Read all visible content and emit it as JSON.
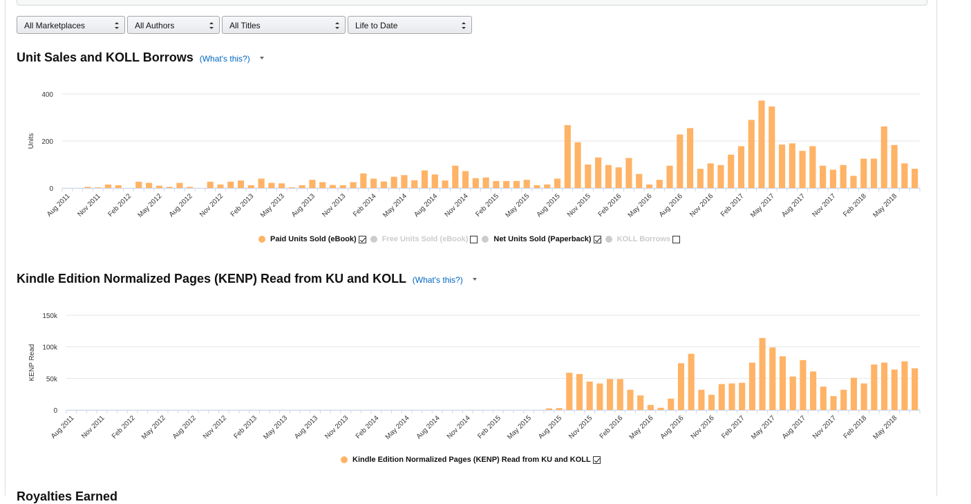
{
  "filters": {
    "marketplace": "All Marketplaces",
    "author": "All Authors",
    "title": "All Titles",
    "period": "Life to Date"
  },
  "section1": {
    "title": "Unit Sales and KOLL Borrows",
    "whats_this": "(What's this?)"
  },
  "section2": {
    "title": "Kindle Edition Normalized Pages (KENP) Read from KU and KOLL",
    "whats_this": "(What's this?)"
  },
  "section3": {
    "title": "Royalties Earned"
  },
  "legend1": [
    {
      "label": "Paid Units Sold (eBook)",
      "color": "#ffb366",
      "active": true,
      "checked": true
    },
    {
      "label": "Free Units Sold (eBook)",
      "color": "#cccccc",
      "active": false,
      "checked": false
    },
    {
      "label": "Net Units Sold (Paperback)",
      "color": "#cccccc",
      "active": true,
      "checked": true
    },
    {
      "label": "KOLL Borrows",
      "color": "#cccccc",
      "active": false,
      "checked": false
    }
  ],
  "legend2": [
    {
      "label": "Kindle Edition Normalized Pages (KENP) Read from KU and KOLL",
      "color": "#ffb366",
      "active": true,
      "checked": true
    }
  ],
  "chart_data": [
    {
      "type": "bar",
      "ylabel": "Units",
      "ylim": [
        0,
        400
      ],
      "yticks": [
        0,
        200,
        400
      ],
      "ytick_labels": [
        "0",
        "200",
        "400"
      ],
      "bar_color": "#ffb366",
      "xtick_labels": [
        "Aug 2011",
        "Nov 2011",
        "Feb 2012",
        "May 2012",
        "Aug 2012",
        "Nov 2012",
        "Feb 2013",
        "May 2013",
        "Aug 2013",
        "Nov 2013",
        "Feb 2014",
        "May 2014",
        "Aug 2014",
        "Nov 2014",
        "Feb 2015",
        "May 2015",
        "Aug 2015",
        "Nov 2015",
        "Feb 2016",
        "May 2016",
        "Aug 2016",
        "Nov 2016",
        "Feb 2017",
        "May 2017",
        "Aug 2017",
        "Nov 2017",
        "Feb 2018",
        "May 2018"
      ],
      "xtick_every": 3,
      "values": [
        0,
        0,
        5,
        3,
        15,
        12,
        0,
        27,
        22,
        10,
        5,
        22,
        5,
        0,
        27,
        15,
        27,
        32,
        12,
        40,
        22,
        20,
        3,
        12,
        35,
        25,
        13,
        12,
        25,
        62,
        40,
        28,
        48,
        55,
        33,
        75,
        58,
        32,
        95,
        72,
        42,
        45,
        30,
        30,
        30,
        35,
        12,
        15,
        40,
        268,
        195,
        100,
        130,
        98,
        88,
        128,
        60,
        15,
        35,
        95,
        228,
        255,
        82,
        105,
        98,
        142,
        178,
        290,
        372,
        347,
        185,
        190,
        158,
        178,
        95,
        78,
        98,
        52,
        125,
        125,
        262,
        183,
        105,
        82
      ]
    },
    {
      "type": "bar",
      "ylabel": "KENP Read",
      "ylim": [
        0,
        150000
      ],
      "yticks": [
        0,
        50000,
        100000,
        150000
      ],
      "ytick_labels": [
        "0",
        "50k",
        "100k",
        "150k"
      ],
      "bar_color": "#ffb366",
      "xtick_labels": [
        "Aug 2011",
        "Nov 2011",
        "Feb 2012",
        "May 2012",
        "Aug 2012",
        "Nov 2012",
        "Feb 2013",
        "May 2013",
        "Aug 2013",
        "Nov 2013",
        "Feb 2014",
        "May 2014",
        "Aug 2014",
        "Nov 2014",
        "Feb 2015",
        "May 2015",
        "Aug 2015",
        "Nov 2015",
        "Feb 2016",
        "May 2016",
        "Aug 2016",
        "Nov 2016",
        "Feb 2017",
        "May 2017",
        "Aug 2017",
        "Nov 2017",
        "Feb 2018",
        "May 2018"
      ],
      "xtick_every": 3,
      "values": [
        0,
        0,
        0,
        0,
        0,
        0,
        0,
        0,
        0,
        0,
        0,
        0,
        0,
        0,
        0,
        0,
        0,
        0,
        0,
        0,
        0,
        0,
        0,
        0,
        0,
        0,
        0,
        0,
        0,
        0,
        0,
        0,
        0,
        0,
        0,
        0,
        0,
        0,
        0,
        0,
        0,
        0,
        0,
        0,
        0,
        0,
        0,
        2500,
        3000,
        59000,
        57000,
        45000,
        42000,
        49000,
        49000,
        32000,
        23000,
        8000,
        3500,
        18000,
        74000,
        89000,
        32000,
        24000,
        41000,
        42000,
        43000,
        75000,
        114000,
        99000,
        85000,
        53000,
        79000,
        61000,
        37000,
        22000,
        32000,
        51000,
        42000,
        72000,
        75000,
        64000,
        77000,
        66000
      ]
    }
  ]
}
